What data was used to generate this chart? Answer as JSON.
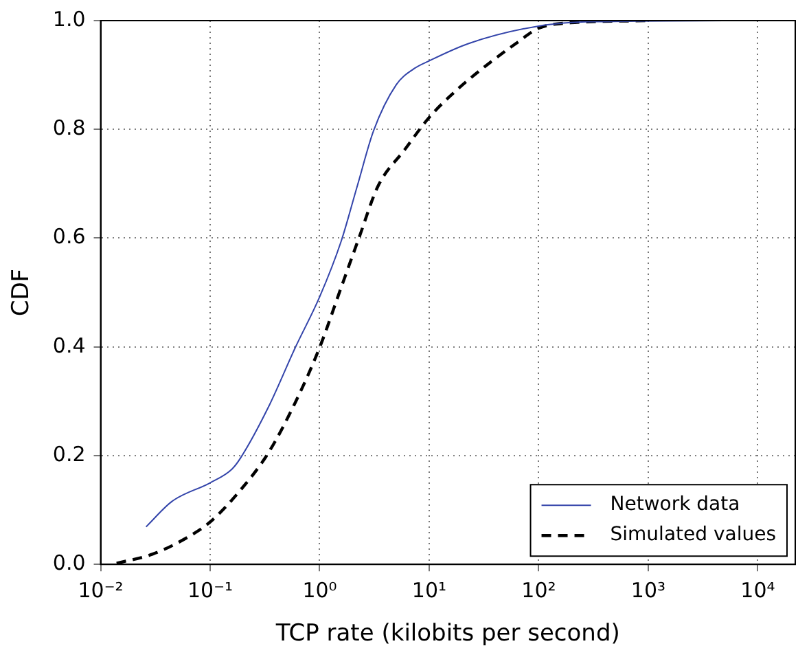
{
  "chart_data": {
    "type": "line",
    "xlabel": "TCP rate (kilobits per second)",
    "ylabel": "CDF",
    "log": "x",
    "xlim": [
      0.01,
      22000
    ],
    "xticks": [
      {
        "value": 0.01,
        "label": "10⁻²"
      },
      {
        "value": 0.1,
        "label": "10⁻¹"
      },
      {
        "value": 1,
        "label": "10⁰"
      },
      {
        "value": 10,
        "label": "10¹"
      },
      {
        "value": 100,
        "label": "10²"
      },
      {
        "value": 1000,
        "label": "10³"
      },
      {
        "value": 10000,
        "label": "10⁴"
      }
    ],
    "ylim": [
      0,
      1
    ],
    "yticks": [
      {
        "value": 0,
        "label": "0.0"
      },
      {
        "value": 0.2,
        "label": "0.2"
      },
      {
        "value": 0.4,
        "label": "0.4"
      },
      {
        "value": 0.6,
        "label": "0.6"
      },
      {
        "value": 0.8,
        "label": "0.8"
      },
      {
        "value": 1,
        "label": "1.0"
      }
    ],
    "grid": true,
    "legend": "bottom right",
    "marker": "none",
    "series": [
      {
        "name": "Network data",
        "color": "#3344aa",
        "line_style": "solid",
        "x": [
          0.026,
          0.045,
          0.1,
          0.158,
          0.19,
          0.34,
          0.6,
          1,
          1.57,
          2.2,
          3.1,
          5,
          7.2,
          10,
          23,
          100,
          316,
          10000
        ],
        "values": [
          0.069,
          0.116,
          0.15,
          0.175,
          0.196,
          0.289,
          0.399,
          0.492,
          0.594,
          0.695,
          0.797,
          0.882,
          0.911,
          0.926,
          0.958,
          0.99,
          0.998,
          1.0
        ]
      },
      {
        "name": "Simulated values",
        "color": "#000000",
        "line_style": "dashed",
        "x": [
          0.014,
          0.03,
          0.06,
          0.1,
          0.19,
          0.34,
          0.6,
          1,
          1.57,
          2.3,
          3.4,
          6,
          10,
          18,
          32,
          62,
          100,
          195,
          1000
        ],
        "values": [
          0.002,
          0.019,
          0.048,
          0.078,
          0.137,
          0.205,
          0.298,
          0.399,
          0.509,
          0.602,
          0.695,
          0.763,
          0.822,
          0.873,
          0.915,
          0.958,
          0.986,
          0.996,
          1.0
        ]
      }
    ]
  }
}
